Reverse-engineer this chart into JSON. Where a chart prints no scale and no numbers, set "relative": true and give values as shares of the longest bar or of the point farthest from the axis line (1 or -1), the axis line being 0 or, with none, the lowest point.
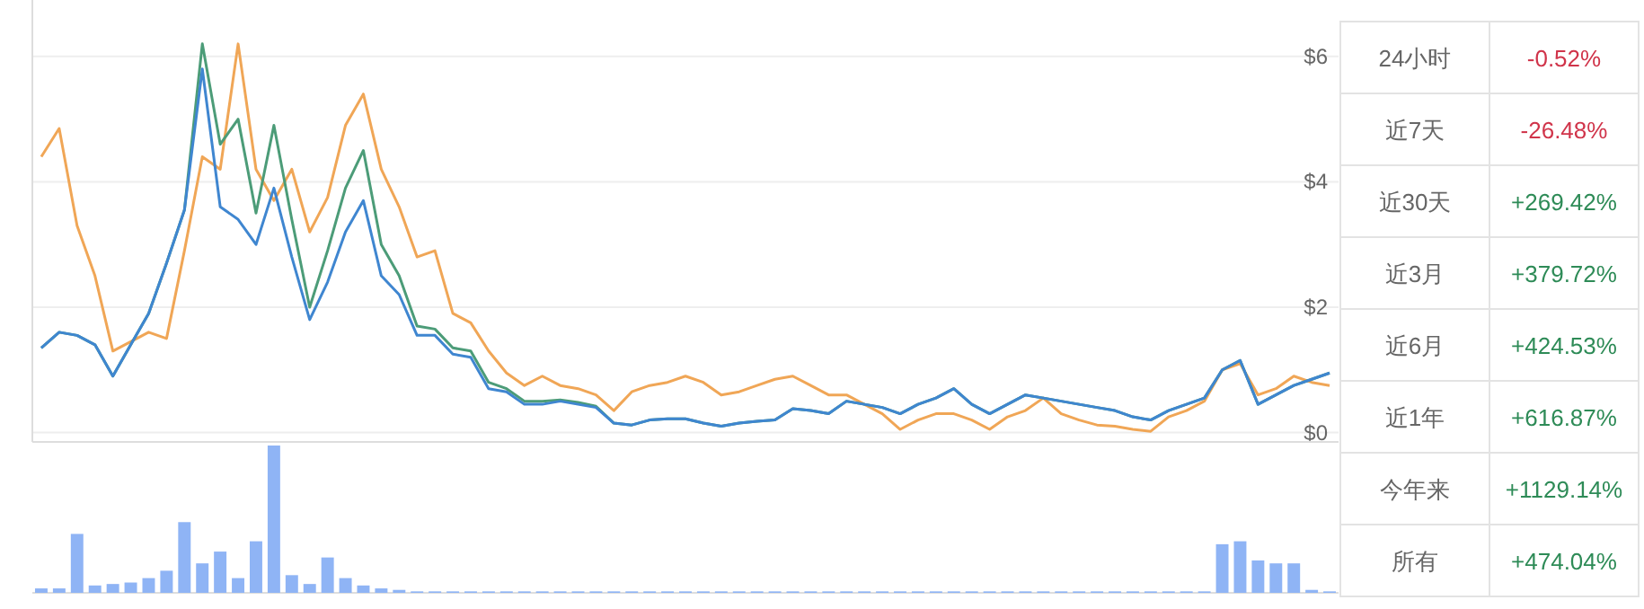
{
  "chart_data": [
    {
      "type": "line",
      "categories": [
        null,
        null,
        null,
        null,
        null,
        null,
        null,
        null,
        null,
        null,
        null,
        null,
        null,
        null,
        null,
        null,
        null,
        null,
        null,
        null,
        null,
        null,
        null,
        null,
        null,
        null,
        null,
        null,
        null,
        null,
        null,
        null,
        null,
        null,
        null,
        null,
        null,
        null,
        null,
        null,
        null,
        null,
        null,
        null,
        null,
        null,
        null,
        null,
        null,
        null,
        null,
        null,
        null,
        null,
        null,
        null,
        null,
        null,
        null,
        null,
        null,
        null,
        null,
        null,
        null,
        null,
        null,
        null,
        null,
        null,
        null,
        null,
        null
      ],
      "ylim": [
        -0.15,
        6.9
      ],
      "yticks": [
        {
          "value": 0,
          "label": "$0"
        },
        {
          "value": 2,
          "label": "$2"
        },
        {
          "value": 4,
          "label": "$4"
        },
        {
          "value": 6,
          "label": "$6"
        }
      ],
      "grid": "y",
      "tick_labels": "y",
      "series": [
        {
          "color": "#f0a656",
          "values": [
            4.4,
            4.85,
            3.3,
            2.5,
            1.3,
            1.45,
            1.6,
            1.5,
            2.9,
            4.4,
            4.2,
            6.2,
            4.2,
            3.7,
            4.2,
            3.2,
            3.75,
            4.9,
            5.4,
            4.2,
            3.6,
            2.8,
            2.9,
            1.9,
            1.75,
            1.3,
            0.95,
            0.75,
            0.9,
            0.75,
            0.7,
            0.6,
            0.35,
            0.65,
            0.75,
            0.8,
            0.9,
            0.8,
            0.6,
            0.65,
            0.75,
            0.85,
            0.9,
            0.75,
            0.6,
            0.6,
            0.45,
            0.3,
            0.05,
            0.2,
            0.3,
            0.3,
            0.2,
            0.05,
            0.25,
            0.35,
            0.55,
            0.3,
            0.2,
            0.12,
            0.1,
            0.05,
            0.02,
            0.25,
            0.35,
            0.5,
            1.0,
            1.1,
            0.6,
            0.7,
            0.9,
            0.8,
            0.75
          ]
        },
        {
          "color": "#4c9c78",
          "values": [
            1.35,
            1.6,
            1.55,
            1.4,
            0.9,
            1.4,
            1.9,
            2.7,
            3.55,
            6.2,
            4.6,
            5.0,
            3.5,
            4.9,
            3.4,
            2.0,
            2.9,
            3.9,
            4.5,
            3.0,
            2.5,
            1.7,
            1.65,
            1.35,
            1.3,
            0.8,
            0.7,
            0.5,
            0.5,
            0.52,
            0.48,
            0.42,
            0.15,
            0.12,
            0.2,
            0.22,
            0.22,
            0.15,
            0.1,
            0.15,
            0.18,
            0.2,
            0.38,
            0.35,
            0.3,
            0.5,
            0.45,
            0.4,
            0.3,
            0.45,
            0.55,
            0.7,
            0.45,
            0.3,
            0.45,
            0.6,
            0.55,
            0.5,
            0.45,
            0.4,
            0.35,
            0.25,
            0.2,
            0.35,
            0.45,
            0.55,
            1.0,
            1.15,
            0.45,
            0.6,
            0.75,
            0.85,
            0.95
          ]
        },
        {
          "color": "#3f86d0",
          "values": [
            1.35,
            1.6,
            1.55,
            1.4,
            0.9,
            1.4,
            1.9,
            2.7,
            3.55,
            5.8,
            3.6,
            3.4,
            3.0,
            3.9,
            2.8,
            1.8,
            2.4,
            3.2,
            3.7,
            2.5,
            2.2,
            1.55,
            1.55,
            1.25,
            1.2,
            0.7,
            0.65,
            0.45,
            0.45,
            0.5,
            0.45,
            0.4,
            0.15,
            0.12,
            0.2,
            0.22,
            0.22,
            0.15,
            0.1,
            0.15,
            0.18,
            0.2,
            0.38,
            0.35,
            0.3,
            0.5,
            0.45,
            0.4,
            0.3,
            0.45,
            0.55,
            0.7,
            0.45,
            0.3,
            0.45,
            0.6,
            0.55,
            0.5,
            0.45,
            0.4,
            0.35,
            0.25,
            0.2,
            0.35,
            0.45,
            0.55,
            1.0,
            1.15,
            0.45,
            0.6,
            0.75,
            0.85,
            0.95
          ]
        }
      ]
    },
    {
      "type": "bar",
      "relative": true,
      "color": "#8fb4f5",
      "categories": [
        null,
        null,
        null,
        null,
        null,
        null,
        null,
        null,
        null,
        null,
        null,
        null,
        null,
        null,
        null,
        null,
        null,
        null,
        null,
        null,
        null,
        null,
        null,
        null,
        null,
        null,
        null,
        null,
        null,
        null,
        null,
        null,
        null,
        null,
        null,
        null,
        null,
        null,
        null,
        null,
        null,
        null,
        null,
        null,
        null,
        null,
        null,
        null,
        null,
        null,
        null,
        null,
        null,
        null,
        null,
        null,
        null,
        null,
        null,
        null,
        null,
        null,
        null,
        null,
        null,
        null,
        null,
        null,
        null,
        null,
        null,
        null,
        null
      ],
      "values": [
        0.03,
        0.03,
        0.4,
        0.05,
        0.06,
        0.07,
        0.1,
        0.15,
        0.48,
        0.2,
        0.28,
        0.1,
        0.35,
        1,
        0.12,
        0.06,
        0.24,
        0.1,
        0.05,
        0.03,
        0.02,
        0.01,
        0.01,
        0.01,
        0.01,
        0.01,
        0.01,
        0.01,
        0.01,
        0.01,
        0.01,
        0.01,
        0.01,
        0.01,
        0.01,
        0.01,
        0.01,
        0.01,
        0.01,
        0.01,
        0.01,
        0.01,
        0.01,
        0.01,
        0.01,
        0.01,
        0.01,
        0.01,
        0.01,
        0.01,
        0.01,
        0.01,
        0.01,
        0.01,
        0.01,
        0.01,
        0.01,
        0.01,
        0.01,
        0.01,
        0.01,
        0.01,
        0.01,
        0.01,
        0.01,
        0.01,
        0.33,
        0.35,
        0.22,
        0.2,
        0.2,
        0.02,
        0.01
      ]
    },
    {
      "type": "other",
      "categories": [
        "24小时",
        "近7天",
        "近30天",
        "近3月",
        "近6月",
        "近1年",
        "今年来",
        "所有"
      ],
      "value_labels": [
        "-0.52%",
        "-26.48%",
        "+269.42%",
        "+379.72%",
        "+424.53%",
        "+616.87%",
        "+1129.14%",
        "+474.04%"
      ],
      "colors": [
        "#d0344a",
        "#d0344a",
        "#2e8b57",
        "#2e8b57",
        "#2e8b57",
        "#2e8b57",
        "#2e8b57",
        "#2e8b57"
      ]
    }
  ]
}
